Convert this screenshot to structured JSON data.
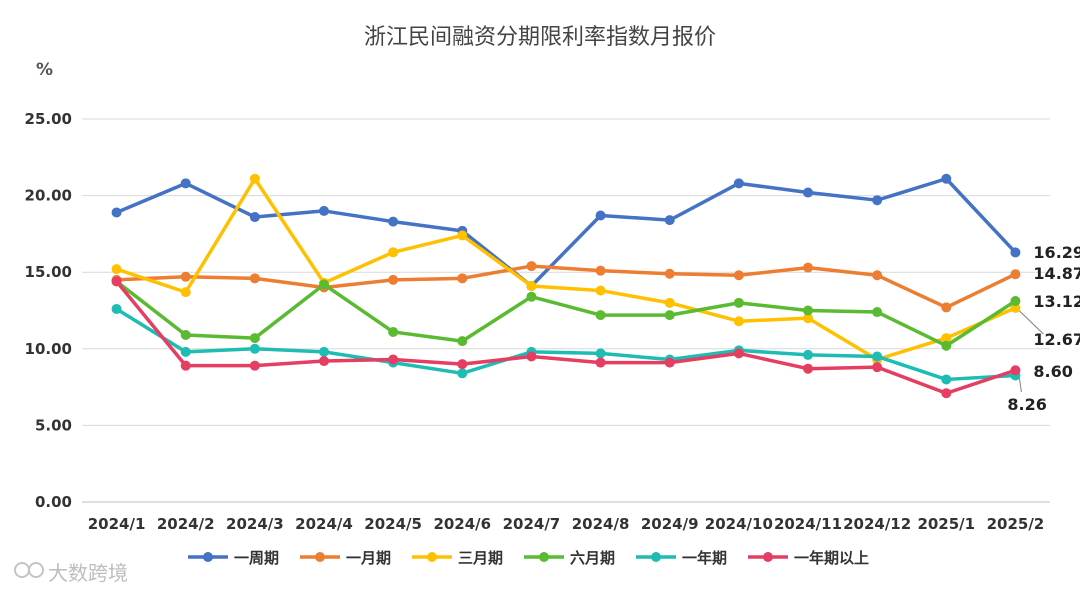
{
  "chart_data": {
    "type": "line",
    "title": "浙江民间融资分期限利率指数月报价",
    "unit": "%",
    "ylim": [
      0,
      25
    ],
    "yticks": [
      "0.00",
      "5.00",
      "10.00",
      "15.00",
      "20.00",
      "25.00"
    ],
    "ytick_values": [
      0,
      5,
      10,
      15,
      20,
      25
    ],
    "grid": "horizontal",
    "legend_position": "bottom",
    "categories": [
      "2024/1",
      "2024/2",
      "2024/3",
      "2024/4",
      "2024/5",
      "2024/6",
      "2024/7",
      "2024/8",
      "2024/9",
      "2024/10",
      "2024/11",
      "2024/12",
      "2025/1",
      "2025/2"
    ],
    "series": [
      {
        "name": "一周期",
        "color": "#4472c4",
        "values": [
          18.9,
          20.8,
          18.6,
          19.0,
          18.3,
          17.7,
          14.1,
          18.7,
          18.4,
          20.8,
          20.2,
          19.7,
          21.1,
          16.29
        ]
      },
      {
        "name": "一月期",
        "color": "#ed7d31",
        "values": [
          14.5,
          14.7,
          14.6,
          14.0,
          14.5,
          14.6,
          15.4,
          15.1,
          14.9,
          14.8,
          15.3,
          14.8,
          12.7,
          14.87
        ]
      },
      {
        "name": "三月期",
        "color": "#ffc000",
        "values": [
          15.2,
          13.7,
          21.1,
          14.3,
          16.3,
          17.4,
          14.1,
          13.8,
          13.0,
          11.8,
          12.0,
          9.3,
          10.7,
          12.67
        ]
      },
      {
        "name": "六月期",
        "color": "#5aba31",
        "values": [
          14.4,
          10.9,
          10.7,
          14.2,
          11.1,
          10.5,
          13.4,
          12.2,
          12.2,
          13.0,
          12.5,
          12.4,
          10.2,
          13.12
        ]
      },
      {
        "name": "一年期",
        "color": "#1fbcb4",
        "values": [
          12.6,
          9.8,
          10.0,
          9.8,
          9.1,
          8.4,
          9.8,
          9.7,
          9.3,
          9.9,
          9.6,
          9.5,
          8.0,
          8.26
        ]
      },
      {
        "name": "一年期以上",
        "color": "#e63d62",
        "values": [
          14.4,
          8.9,
          8.9,
          9.2,
          9.3,
          9.0,
          9.5,
          9.1,
          9.1,
          9.7,
          8.7,
          8.8,
          7.1,
          8.6
        ]
      }
    ],
    "end_labels": [
      "16.29",
      "14.87",
      "13.12",
      "12.67",
      "8.60",
      "8.26"
    ]
  },
  "watermark": "大数跨境"
}
